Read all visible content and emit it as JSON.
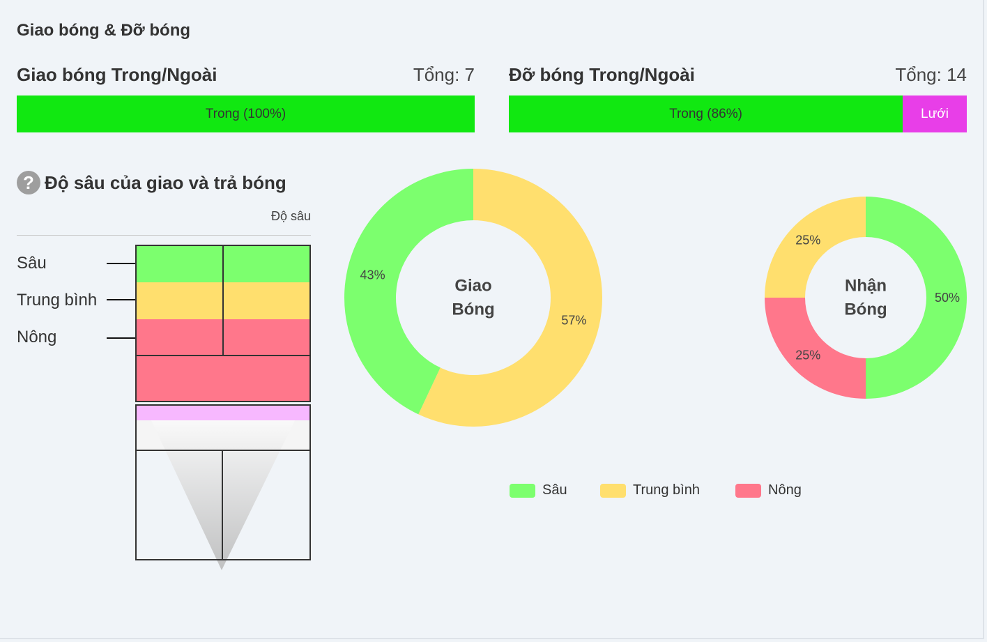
{
  "section_title": "Giao bóng & Đỡ bóng",
  "serve_bar": {
    "title": "Giao bóng Trong/Ngoài",
    "total_label": "Tổng: 7",
    "segments": [
      {
        "label": "Trong (100%)",
        "fraction": 1.0,
        "color": "#11e811"
      }
    ]
  },
  "receive_bar": {
    "title": "Đỡ bóng Trong/Ngoài",
    "total_label": "Tổng: 14",
    "segments": [
      {
        "label": "Trong (86%)",
        "fraction": 0.86,
        "color": "#11e811"
      },
      {
        "label": "Lưới",
        "fraction": 0.14,
        "color": "#e83ee8"
      }
    ]
  },
  "depth": {
    "help_icon": "question-circle-icon",
    "title": "Độ sâu của giao và trả bóng",
    "column_header": "Độ sâu",
    "levels": [
      "Sâu",
      "Trung bình",
      "Nông"
    ]
  },
  "chart_data": [
    {
      "type": "pie",
      "name": "Giao Bóng",
      "center_label_lines": [
        "Giao",
        "Bóng"
      ],
      "slices": [
        {
          "label": "Trung bình",
          "value": 57,
          "text": "57%",
          "color": "#ffdf6e"
        },
        {
          "label": "Sâu",
          "value": 43,
          "text": "43%",
          "color": "#7cff6e"
        }
      ]
    },
    {
      "type": "pie",
      "name": "Nhận Bóng",
      "center_label_lines": [
        "Nhận",
        "Bóng"
      ],
      "slices": [
        {
          "label": "Sâu",
          "value": 50,
          "text": "50%",
          "color": "#7cff6e"
        },
        {
          "label": "Nông",
          "value": 25,
          "text": "25%",
          "color": "#ff778b"
        },
        {
          "label": "Trung bình",
          "value": 25,
          "text": "25%",
          "color": "#ffdf6e"
        }
      ]
    }
  ],
  "legend": [
    {
      "label": "Sâu",
      "color": "#7cff6e"
    },
    {
      "label": "Trung bình",
      "color": "#ffdf6e"
    },
    {
      "label": "Nông",
      "color": "#ff778b"
    }
  ],
  "colors": {
    "deep": "#7cff6e",
    "medium": "#ffdf6e",
    "shallow": "#ff778b",
    "net": "#f7b8ff"
  }
}
